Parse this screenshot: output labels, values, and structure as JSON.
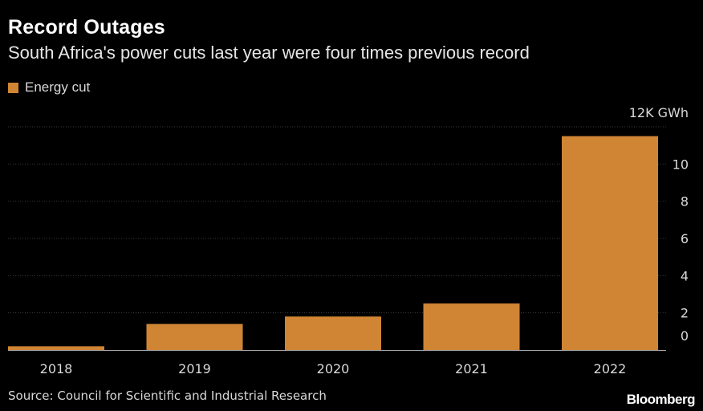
{
  "title": "Record Outages",
  "subtitle": "South Africa's power cuts last year were four times previous record",
  "legend": {
    "label": "Energy cut"
  },
  "source": "Source: Council for Scientific and Industrial Research",
  "brand": "Bloomberg",
  "colors": {
    "bar": "#d08535",
    "grid": "#3a3a3a",
    "axis": "#aaaaaa",
    "tick_text": "#d9d9d9"
  },
  "chart_data": {
    "type": "bar",
    "categories": [
      "2018",
      "2019",
      "2020",
      "2021",
      "2022"
    ],
    "series": [
      {
        "name": "Energy cut",
        "values": [
          0.2,
          1.4,
          1.8,
          2.5,
          11.5
        ]
      }
    ],
    "ylim": [
      0,
      12
    ],
    "yticks": [
      0,
      2,
      4,
      6,
      8,
      10,
      12
    ],
    "ytick_labels": [
      "0",
      "2",
      "4",
      "6",
      "8",
      "10",
      "12K GWh"
    ],
    "yaxis_position": "right",
    "grid": true,
    "legend_position": "top-left"
  }
}
